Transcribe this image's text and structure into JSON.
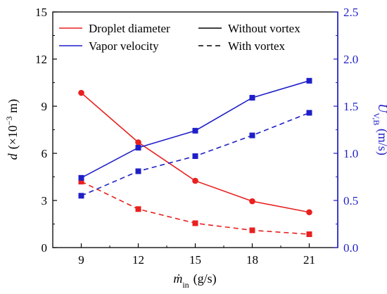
{
  "chart_data": {
    "type": "line",
    "x_values": [
      9,
      12,
      15,
      18,
      21
    ],
    "x_ticks": [
      "9",
      "12",
      "15",
      "18",
      "21"
    ],
    "xlim": [
      7.5,
      22.5
    ],
    "xlabel": {
      "symbol": "ṁ",
      "subscript": "in",
      "units": "(g/s)"
    },
    "y_left": {
      "ticks": [
        "0",
        "3",
        "6",
        "9",
        "12",
        "15"
      ],
      "ylim": [
        0,
        15
      ],
      "label": {
        "symbol": "d",
        "paren_open": "(×10",
        "exponent": "−3",
        "paren_close": " m)"
      }
    },
    "y_right": {
      "ticks": [
        "0.0",
        "0.5",
        "1.0",
        "1.5",
        "2.0",
        "2.5"
      ],
      "ylim": [
        0,
        2.5
      ],
      "label": {
        "symbol": "U",
        "subscript": "V,B",
        "units": " (m/s)"
      }
    },
    "series": [
      {
        "name": "Droplet diameter",
        "condition": "Without vortex",
        "axis": "left",
        "color": "#e8201f",
        "marker": "circle",
        "dash": "solid",
        "values": [
          9.85,
          6.7,
          4.25,
          2.95,
          2.25
        ]
      },
      {
        "name": "Droplet diameter",
        "condition": "With vortex",
        "axis": "left",
        "color": "#e8201f",
        "marker": "square",
        "dash": "dashed",
        "values": [
          4.2,
          2.45,
          1.55,
          1.1,
          0.85
        ]
      },
      {
        "name": "Vapor velocity",
        "condition": "Without vortex",
        "axis": "right",
        "color": "#1f1fc8",
        "marker": "square",
        "dash": "solid",
        "values": [
          0.74,
          1.06,
          1.24,
          1.59,
          1.77
        ]
      },
      {
        "name": "Vapor velocity",
        "condition": "With vortex",
        "axis": "right",
        "color": "#1f1fc8",
        "marker": "square",
        "dash": "dashed",
        "values": [
          0.55,
          0.81,
          0.97,
          1.19,
          1.43
        ]
      }
    ],
    "legend": {
      "placement": "top",
      "entries": [
        {
          "label": "Droplet diameter",
          "color": "#e8201f",
          "dash": "solid"
        },
        {
          "label": "Vapor velocity",
          "color": "#1f1fc8",
          "dash": "solid"
        },
        {
          "label": "Without vortex",
          "color": "#000000",
          "dash": "solid"
        },
        {
          "label": "With vortex",
          "color": "#000000",
          "dash": "dashed"
        }
      ]
    },
    "grid": false
  }
}
